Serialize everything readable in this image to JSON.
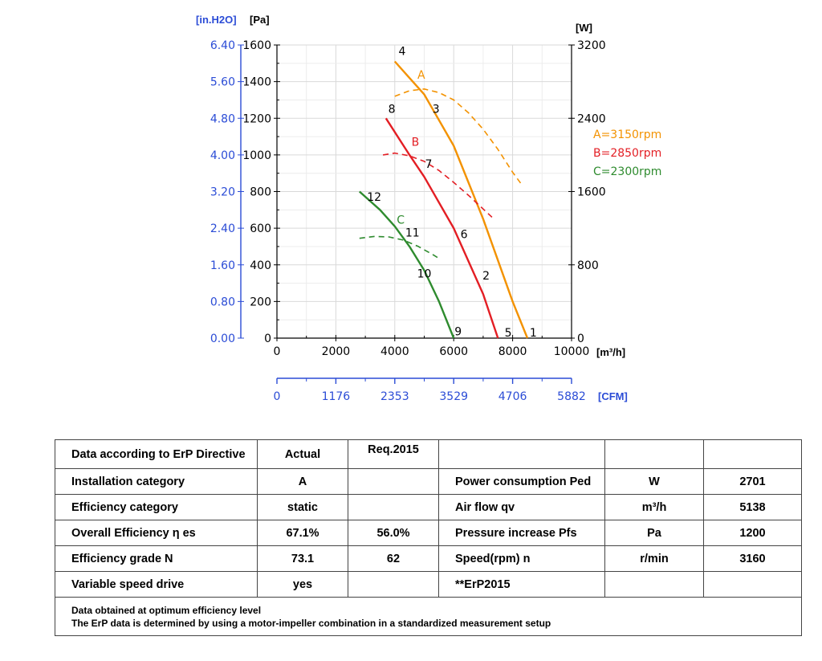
{
  "chart_data": {
    "type": "line",
    "left_axis_labels": {
      "inh2o": "[in.H2O]",
      "pa": "[Pa]"
    },
    "right_axis_label": "[W]",
    "x_unit_label": "[m³/h]",
    "cfm_unit_label": "[CFM]",
    "x_ticks": [
      0,
      2000,
      4000,
      6000,
      8000,
      10000
    ],
    "y_pa_ticks": [
      0,
      200,
      400,
      600,
      800,
      1000,
      1200,
      1400,
      1600
    ],
    "y_inh2o_ticks": [
      "0.00",
      "0.80",
      "1.60",
      "2.40",
      "3.20",
      "4.00",
      "4.80",
      "5.60",
      "6.40"
    ],
    "y_w_ticks": [
      0,
      800,
      1600,
      2400,
      3200
    ],
    "cfm_ticks": [
      "0",
      "1176",
      "2353",
      "3529",
      "4706",
      "5882"
    ],
    "xlim": [
      0,
      10000
    ],
    "ylim_pa": [
      0,
      1600
    ],
    "ylim_w": [
      0,
      3200
    ],
    "legend": [
      {
        "text": "A=3150rpm",
        "color": "#f39200"
      },
      {
        "text": "B=2850rpm",
        "color": "#e31e24"
      },
      {
        "text": "C=2300rpm",
        "color": "#2e8b2e"
      }
    ],
    "series": [
      {
        "curve": "A",
        "kind": "pressure",
        "color": "#f39200",
        "x": [
          4000,
          5000,
          6000,
          7000,
          8000,
          8500
        ],
        "y": [
          1510,
          1330,
          1050,
          650,
          200,
          0
        ]
      },
      {
        "curve": "B",
        "kind": "pressure",
        "color": "#e31e24",
        "x": [
          3700,
          4500,
          5000,
          6000,
          7000,
          7500
        ],
        "y": [
          1200,
          1000,
          880,
          600,
          240,
          0
        ]
      },
      {
        "curve": "C",
        "kind": "pressure",
        "color": "#2e8b2e",
        "x": [
          2800,
          3500,
          4000,
          4500,
          5000,
          5500,
          6000
        ],
        "y": [
          800,
          700,
          610,
          500,
          370,
          200,
          0
        ]
      },
      {
        "curve": "A",
        "kind": "power",
        "color": "#f39200",
        "x": [
          4000,
          4500,
          5000,
          5500,
          6000,
          6500,
          7000,
          7500,
          8000,
          8300
        ],
        "y": [
          2640,
          2700,
          2720,
          2680,
          2600,
          2460,
          2280,
          2060,
          1810,
          1680
        ]
      },
      {
        "curve": "B",
        "kind": "power",
        "color": "#e31e24",
        "x": [
          3600,
          4000,
          4500,
          5000,
          5500,
          6000,
          6500,
          7000,
          7300
        ],
        "y": [
          2000,
          2020,
          1990,
          1930,
          1830,
          1700,
          1560,
          1410,
          1320
        ]
      },
      {
        "curve": "C",
        "kind": "power",
        "color": "#2e8b2e",
        "x": [
          2800,
          3300,
          3800,
          4300,
          4800,
          5300,
          5500
        ],
        "y": [
          1090,
          1110,
          1105,
          1070,
          1000,
          910,
          870
        ]
      }
    ],
    "point_labels": [
      {
        "text": "1",
        "x": 8700,
        "y": 8
      },
      {
        "text": "2",
        "x": 7100,
        "y": 320
      },
      {
        "text": "3",
        "x": 5400,
        "y": 1230
      },
      {
        "text": "4",
        "x": 4250,
        "y": 1545
      },
      {
        "text": "5",
        "x": 7850,
        "y": 8
      },
      {
        "text": "6",
        "x": 6350,
        "y": 545
      },
      {
        "text": "7",
        "x": 5150,
        "y": 930
      },
      {
        "text": "8",
        "x": 3900,
        "y": 1230
      },
      {
        "text": "9",
        "x": 6150,
        "y": 15
      },
      {
        "text": "10",
        "x": 5000,
        "y": 330
      },
      {
        "text": "11",
        "x": 4600,
        "y": 555
      },
      {
        "text": "12",
        "x": 3300,
        "y": 750
      }
    ],
    "curve_letters": [
      {
        "text": "A",
        "x": 4900,
        "y": 1415,
        "color": "#f39200"
      },
      {
        "text": "B",
        "x": 4700,
        "y": 1050,
        "color": "#e31e24"
      },
      {
        "text": "C",
        "x": 4200,
        "y": 625,
        "color": "#2e8b2e"
      }
    ]
  },
  "table": {
    "header": [
      "Data according to ErP Directive",
      "Actual",
      "Req.2015",
      "",
      "",
      ""
    ],
    "rows": [
      [
        "Installation category",
        "A",
        "",
        "Power consumption Ped",
        "W",
        "2701"
      ],
      [
        "Efficiency category",
        "static",
        "",
        "Air flow qv",
        "m³/h",
        "5138"
      ],
      [
        "Overall Efficiency η es",
        "67.1%",
        "56.0%",
        "Pressure increase Pfs",
        "Pa",
        "1200"
      ],
      [
        "Efficiency grade N",
        "73.1",
        "62",
        "Speed(rpm) n",
        "r/min",
        "3160"
      ],
      [
        "Variable speed drive",
        "yes",
        "",
        "**ErP2015",
        "",
        ""
      ]
    ],
    "notes": [
      "Data obtained at optimum efficiency level",
      "The ErP data is determined by using a motor-impeller combination in a standardized measurement setup"
    ]
  }
}
